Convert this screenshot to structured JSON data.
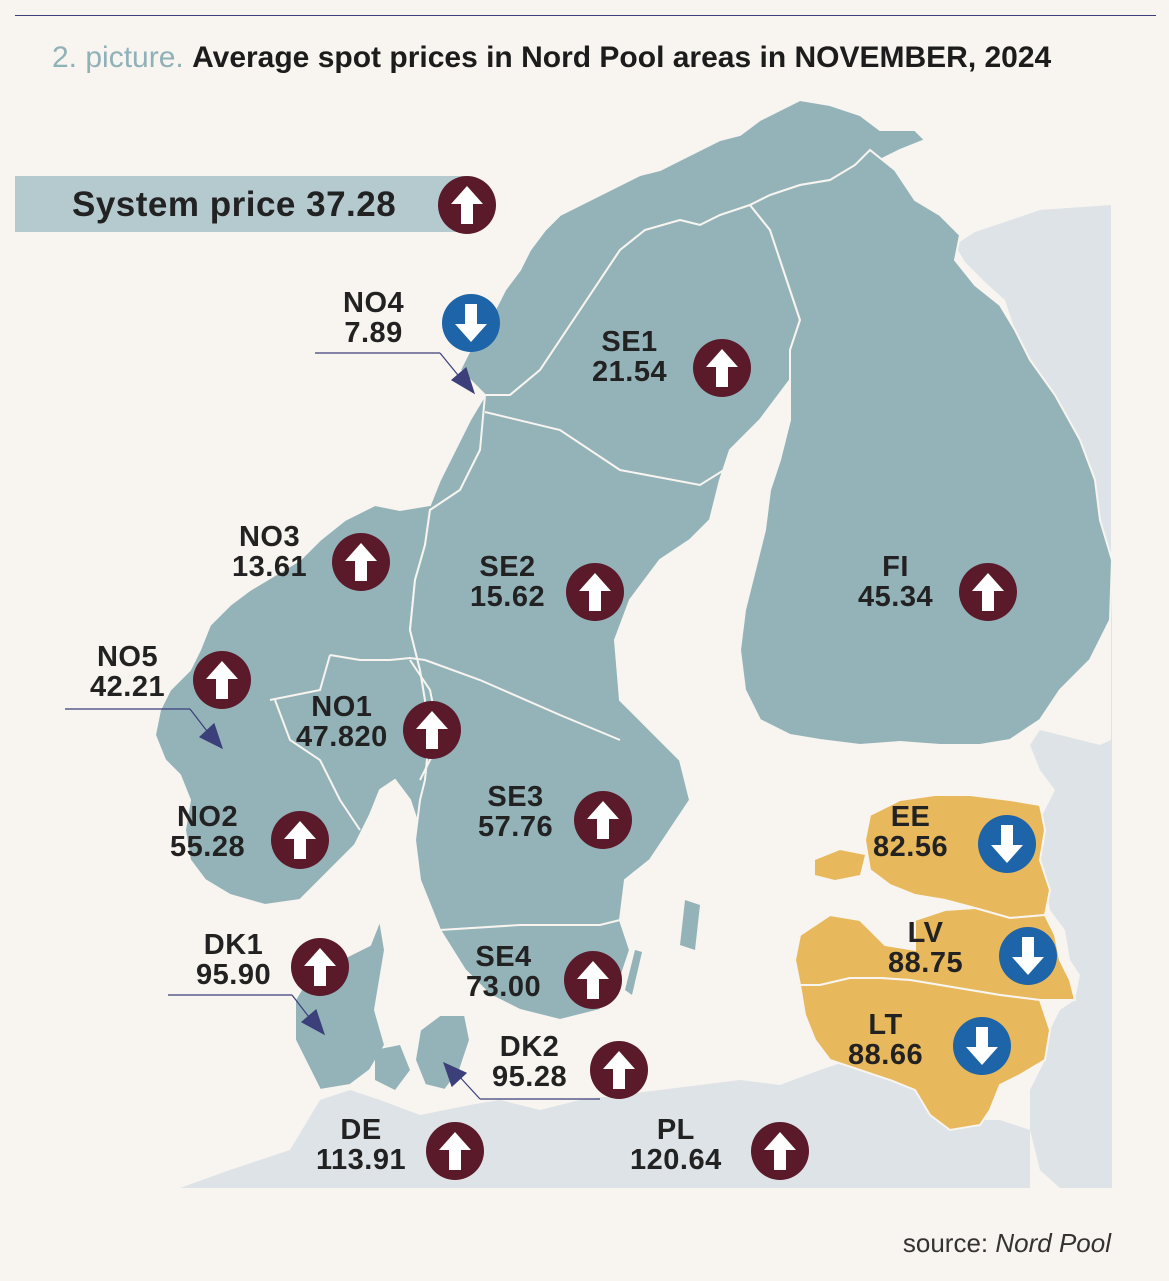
{
  "title": {
    "prefix": "2. picture.",
    "main": "Average spot prices in Nord Pool areas in NOVEMBER, 2024"
  },
  "system_price": {
    "label": "System price 37.28",
    "trend": "up"
  },
  "colors": {
    "background": "#f8f4ef",
    "nordic_land": "#93b3b9",
    "baltic_land": "#e8b85c",
    "other_land": "#dde3e6",
    "sea": "#f8f4ef",
    "up_badge": "#5a1a2a",
    "down_badge": "#1e64a8",
    "system_bar": "#b4cacf"
  },
  "icons": {
    "up": "arrow-up-icon",
    "down": "arrow-down-icon"
  },
  "areas": [
    {
      "id": "NO4",
      "name": "NO4",
      "price": "7.89",
      "trend": "down"
    },
    {
      "id": "SE1",
      "name": "SE1",
      "price": "21.54",
      "trend": "up"
    },
    {
      "id": "NO3",
      "name": "NO3",
      "price": "13.61",
      "trend": "up"
    },
    {
      "id": "SE2",
      "name": "SE2",
      "price": "15.62",
      "trend": "up"
    },
    {
      "id": "FI",
      "name": "FI",
      "price": "45.34",
      "trend": "up"
    },
    {
      "id": "NO5",
      "name": "NO5",
      "price": "42.21",
      "trend": "up"
    },
    {
      "id": "NO1",
      "name": "NO1",
      "price": "47.820",
      "trend": "up"
    },
    {
      "id": "SE3",
      "name": "SE3",
      "price": "57.76",
      "trend": "up"
    },
    {
      "id": "NO2",
      "name": "NO2",
      "price": "55.28",
      "trend": "up"
    },
    {
      "id": "EE",
      "name": "EE",
      "price": "82.56",
      "trend": "down"
    },
    {
      "id": "LV",
      "name": "LV",
      "price": "88.75",
      "trend": "down"
    },
    {
      "id": "LT",
      "name": "LT",
      "price": "88.66",
      "trend": "down"
    },
    {
      "id": "DK1",
      "name": "DK1",
      "price": "95.90",
      "trend": "up"
    },
    {
      "id": "SE4",
      "name": "SE4",
      "price": "73.00",
      "trend": "up"
    },
    {
      "id": "DK2",
      "name": "DK2",
      "price": "95.28",
      "trend": "up"
    },
    {
      "id": "DE",
      "name": "DE",
      "price": "113.91",
      "trend": "up"
    },
    {
      "id": "PL",
      "name": "PL",
      "price": "120.64",
      "trend": "up"
    }
  ],
  "source": {
    "prefix": "source:",
    "name": "Nord Pool"
  }
}
